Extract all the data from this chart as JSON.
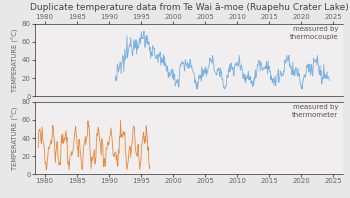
{
  "title": "Duplicate temperature data from Te Wai ā-moe (Ruapehu Crater Lake)",
  "title_fontsize": 6.5,
  "ylabel_fontsize": 4.8,
  "tick_fontsize": 5.0,
  "annotation_fontsize": 5.0,
  "thermocouple_color": "#7ab0e0",
  "thermometer_color": "#e8883a",
  "background_color": "#e8e8e8",
  "axes_bg_color": "#f0eeee",
  "xmin": 1978.5,
  "xmax": 2026.5,
  "xticks": [
    1980,
    1985,
    1990,
    1995,
    2000,
    2005,
    2010,
    2015,
    2020,
    2025
  ],
  "ymin": 0,
  "ymax": 80,
  "yticks": [
    0,
    20,
    40,
    60,
    80
  ],
  "ylabel": "TEMPERATURE (°C)",
  "label_thermocouple": "measured by\nthermocouple",
  "label_thermometer": "measured by\nthermometer",
  "tc_lw": 0.6,
  "tm_lw": 0.6
}
